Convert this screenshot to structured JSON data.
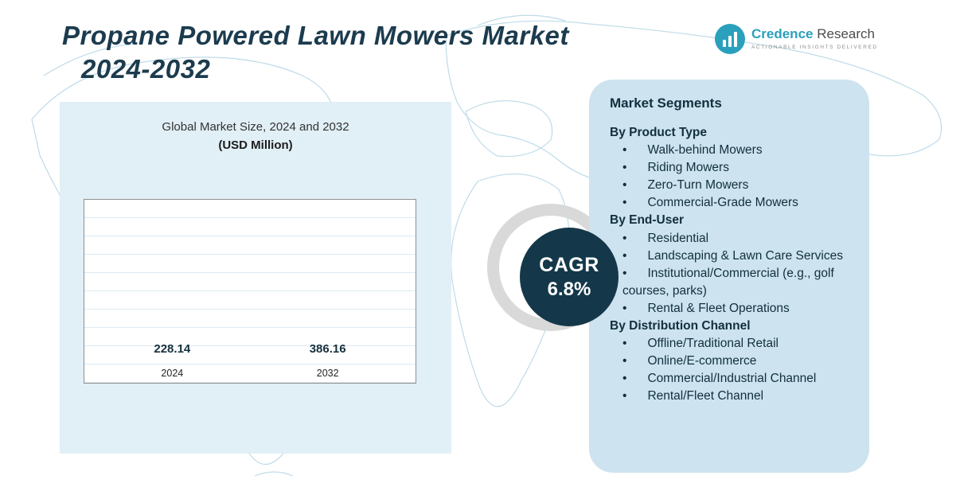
{
  "header": {
    "title_line1": "Propane Powered Lawn Mowers Market",
    "title_line2": "2024-2032",
    "logo": {
      "name": "Credence",
      "name2": "Research",
      "tagline": "Actionable Insights Delivered"
    }
  },
  "chart_data": {
    "type": "bar",
    "title": "Global Market Size, 2024 and 2032",
    "subtitle": "(USD Million)",
    "categories": [
      "2024",
      "2032"
    ],
    "values": [
      228.14,
      386.16
    ],
    "ylabel": "",
    "xlabel": "",
    "ylim": [
      0,
      450
    ],
    "grid": true,
    "legend": "none",
    "bar_colors": [
      "#4ba6a0",
      "#1f8dbf"
    ],
    "cagr": "6.8%"
  },
  "cagr": {
    "label": "CAGR",
    "value": "6.8%"
  },
  "segments": {
    "title": "Market Segments",
    "groups": [
      {
        "heading": "By Product Type",
        "items": [
          "Walk-behind Mowers",
          "Riding Mowers",
          "Zero-Turn Mowers",
          "Commercial-Grade Mowers"
        ]
      },
      {
        "heading": "By End-User",
        "items": [
          "Residential",
          "Landscaping & Lawn Care Services",
          "Institutional/Commercial (e.g., golf courses, parks)",
          "Rental & Fleet Operations"
        ]
      },
      {
        "heading": "By Distribution Channel",
        "items": [
          "Offline/Traditional Retail",
          "Online/E-commerce",
          "Commercial/Industrial Channel",
          "Rental/Fleet Channel"
        ]
      }
    ]
  },
  "colors": {
    "cagr_circle": "#14384a",
    "panel_light": "#e1eff6",
    "panel_segments": "#cde3ef",
    "title_text": "#1c3b4e",
    "logo_teal": "#2aa0bd"
  }
}
